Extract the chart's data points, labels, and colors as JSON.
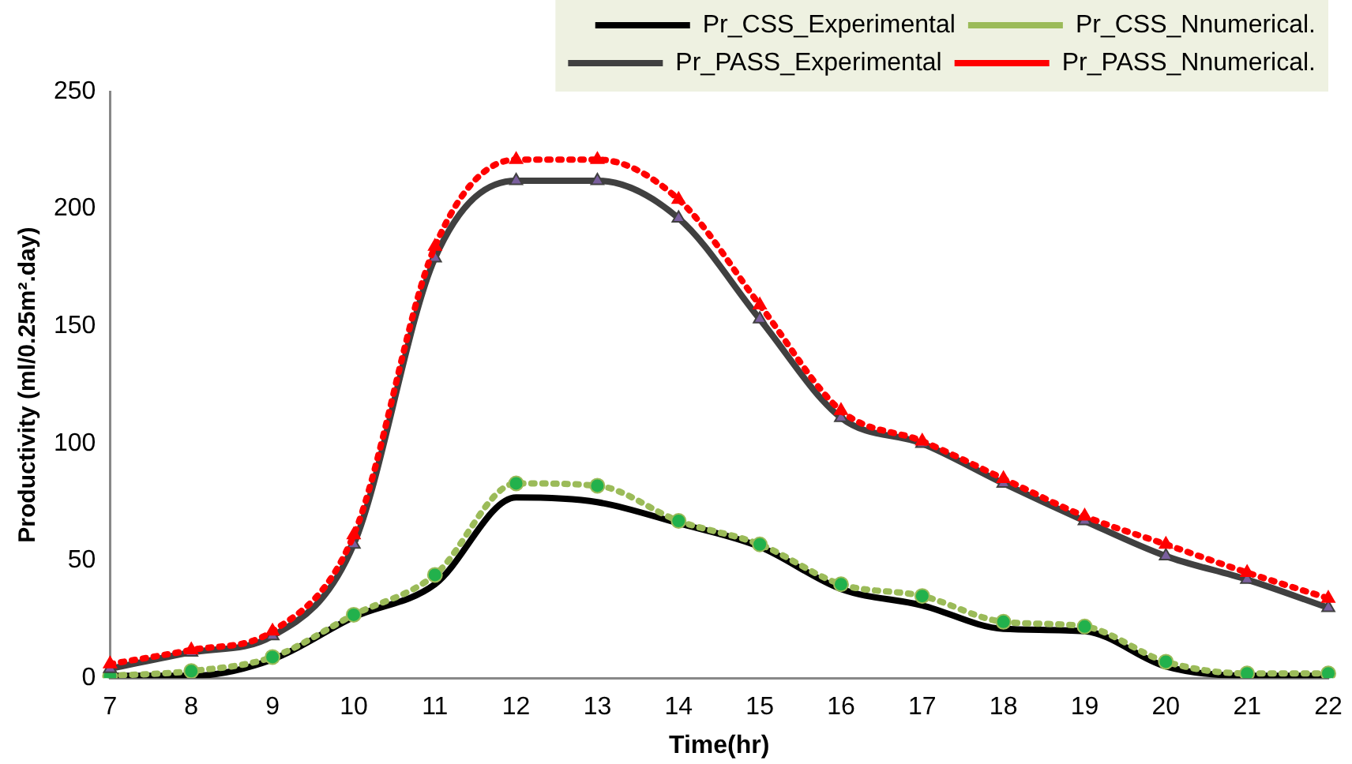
{
  "chart_data": {
    "type": "line",
    "xlabel": "Time(hr)",
    "ylabel": "Productivity (ml/0.25m².day)",
    "categories": [
      "7",
      "8",
      "9",
      "10",
      "11",
      "12",
      "13",
      "14",
      "15",
      "16",
      "17",
      "18",
      "19",
      "20",
      "21",
      "22"
    ],
    "series": [
      {
        "name": "Pr_CSS_Experimental",
        "color": "#000000",
        "marker": "none",
        "line_style": "solid",
        "values": [
          1,
          1,
          8,
          26,
          40,
          77,
          75,
          66,
          56,
          38,
          31,
          21,
          20,
          5,
          1,
          1
        ]
      },
      {
        "name": "Pr_CSS_Nnumerical.",
        "color": "#9bbb59",
        "marker": "circle",
        "line_style": "dotted",
        "values": [
          1,
          3,
          9,
          27,
          44,
          83,
          82,
          67,
          57,
          40,
          35,
          24,
          22,
          7,
          2,
          2
        ]
      },
      {
        "name": "Pr_PASS_Experimental",
        "color": "#404040",
        "marker": "triangle",
        "line_style": "solid",
        "values": [
          4,
          11,
          18,
          57,
          179,
          212,
          212,
          196,
          153,
          111,
          100,
          83,
          67,
          52,
          42,
          30
        ]
      },
      {
        "name": "Pr_PASS_Nnumerical.",
        "color": "#ff0000",
        "marker": "triangle",
        "line_style": "dotted",
        "values": [
          6,
          12,
          20,
          61,
          184,
          221,
          221,
          204,
          159,
          114,
          101,
          85,
          69,
          57,
          45,
          34
        ]
      }
    ],
    "ylim": [
      0,
      250
    ],
    "yticks": [
      0,
      50,
      100,
      150,
      200,
      250
    ],
    "grid": false,
    "legend": "top right"
  }
}
